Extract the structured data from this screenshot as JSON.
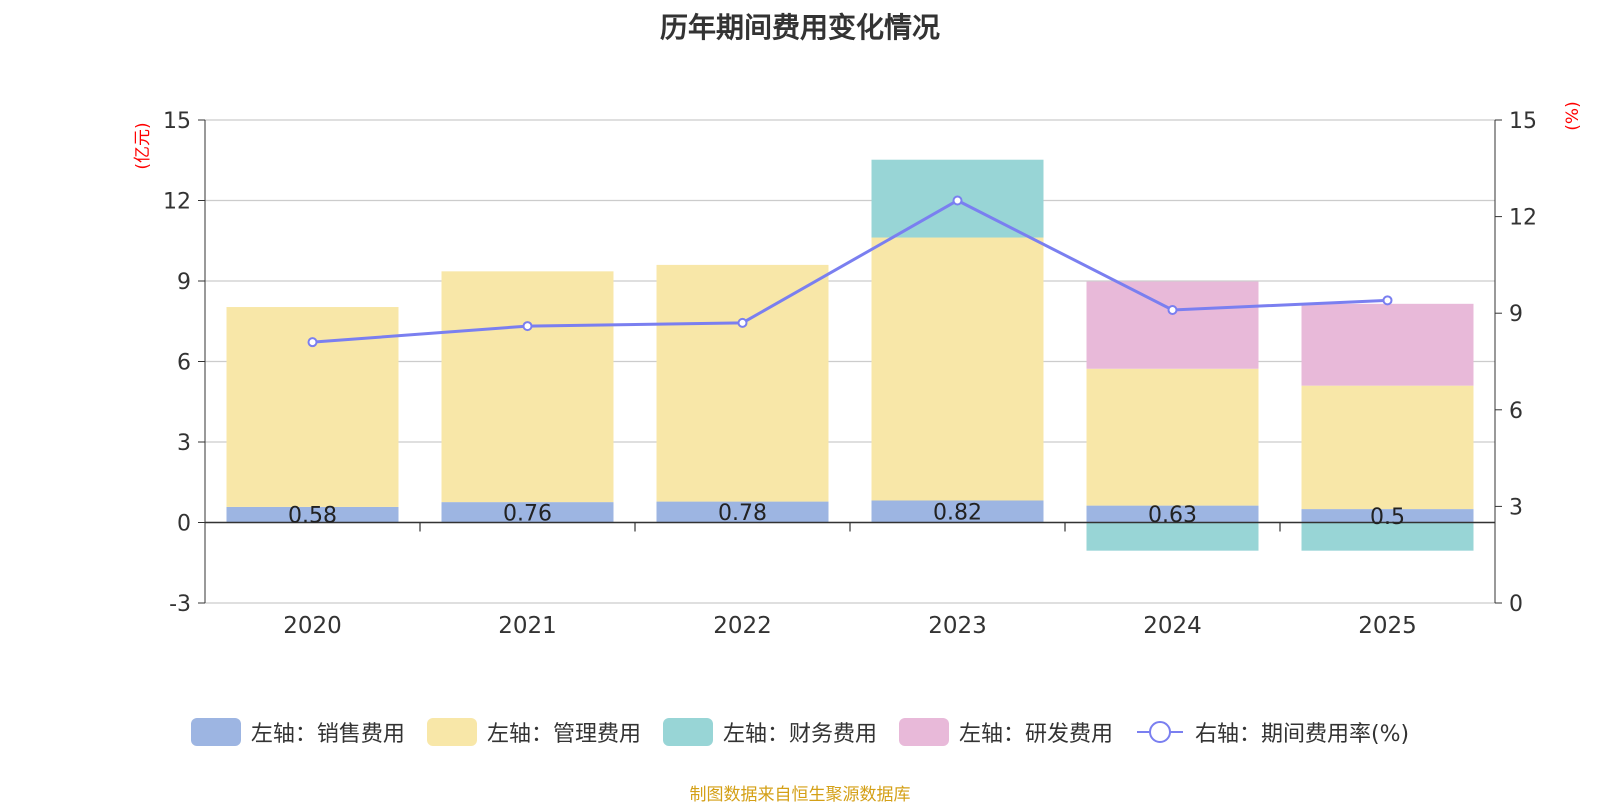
{
  "chart_data": {
    "type": "bar",
    "title": "历年期间费用变化情况",
    "categories": [
      "2020",
      "2021",
      "2022",
      "2023",
      "2024",
      "2025"
    ],
    "y_left_unit": "(亿元)",
    "y_right_unit": "(%)",
    "y_left_range": [
      -3,
      15
    ],
    "y_left_ticks": [
      -3,
      0,
      3,
      6,
      9,
      12,
      15
    ],
    "y_right_range": [
      0,
      15
    ],
    "y_right_ticks": [
      0,
      3,
      6,
      9,
      12,
      15
    ],
    "series": [
      {
        "name": "左轴：销售费用",
        "kind": "bar",
        "color": "#9db5e2",
        "values": [
          0.58,
          0.76,
          0.78,
          0.82,
          0.63,
          0.5
        ],
        "labels": [
          "0.58",
          "0.76",
          "0.78",
          "0.82",
          "0.63",
          "0.5"
        ]
      },
      {
        "name": "左轴：管理费用",
        "kind": "bar",
        "color": "#f8e7a8",
        "values": [
          7.45,
          8.6,
          8.82,
          9.8,
          5.1,
          4.6
        ]
      },
      {
        "name": "左轴：财务费用",
        "kind": "bar",
        "color": "#98d5d6",
        "values": [
          0,
          0,
          0,
          2.9,
          -1.05,
          -1.05
        ]
      },
      {
        "name": "左轴：研发费用",
        "kind": "bar",
        "color": "#e8b9d9",
        "values": [
          0,
          0,
          0,
          0,
          3.25,
          3.05
        ]
      },
      {
        "name": "右轴：期间费用率(%)",
        "kind": "line",
        "color": "#7a7ff0",
        "values": [
          8.1,
          8.6,
          8.7,
          12.5,
          9.1,
          9.4
        ]
      }
    ]
  },
  "source": "制图数据来自恒生聚源数据库"
}
